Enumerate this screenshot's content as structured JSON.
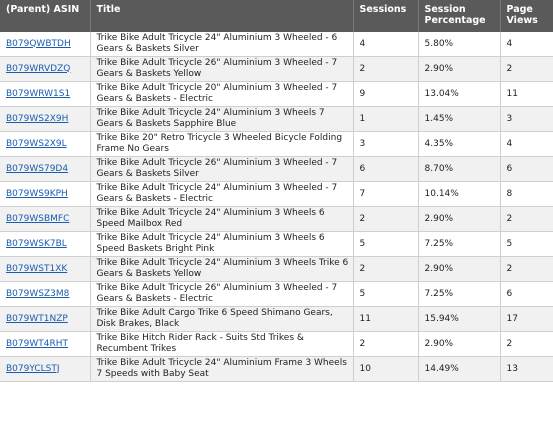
{
  "headers": {
    "asin": "(Parent) ASIN",
    "title": "Title",
    "sessions": "Sessions",
    "session_pct": "Session Percentage",
    "page_views": "Page Views"
  },
  "rows": [
    {
      "asin": "B079QWBTDH",
      "title": "Trike Bike Adult Tricycle 24\" Aluminium 3 Wheeled - 6 Gears & Baskets Silver",
      "sessions": "4",
      "pct": "5.80%",
      "views": "4"
    },
    {
      "asin": "B079WRVDZQ",
      "title": "Trike Bike Adult Tricycle 26\" Aluminium 3 Wheeled - 7 Gears & Baskets Yellow",
      "sessions": "2",
      "pct": "2.90%",
      "views": "2"
    },
    {
      "asin": "B079WRW1S1",
      "title": "Trike Bike Adult Tricycle 20\" Aluminium 3 Wheeled - 7 Gears & Baskets - Electric",
      "sessions": "9",
      "pct": "13.04%",
      "views": "11"
    },
    {
      "asin": "B079WS2X9H",
      "title": "Trike Bike Adult Tricycle 24\" Aluminium 3 Wheels 7 Gears & Baskets Sapphire Blue",
      "sessions": "1",
      "pct": "1.45%",
      "views": "3"
    },
    {
      "asin": "B079WS2X9L",
      "title": "Trike Bike 20\" Retro Tricycle 3 Wheeled Bicycle Folding Frame No Gears",
      "sessions": "3",
      "pct": "4.35%",
      "views": "4"
    },
    {
      "asin": "B079WS79D4",
      "title": "Trike Bike Adult Tricycle 26\" Aluminium 3 Wheeled - 7 Gears & Baskets Silver",
      "sessions": "6",
      "pct": "8.70%",
      "views": "6"
    },
    {
      "asin": "B079WS9KPH",
      "title": "Trike Bike Adult Tricycle 24\" Aluminium 3 Wheeled - 7 Gears & Baskets - Electric",
      "sessions": "7",
      "pct": "10.14%",
      "views": "8"
    },
    {
      "asin": "B079WSBMFC",
      "title": "Trike Bike Adult Tricycle 24\" Aluminium 3 Wheels 6 Speed Mailbox Red",
      "sessions": "2",
      "pct": "2.90%",
      "views": "2"
    },
    {
      "asin": "B079WSK7BL",
      "title": "Trike Bike Adult Tricycle 24\" Aluminium 3 Wheels 6 Speed Baskets Bright Pink",
      "sessions": "5",
      "pct": "7.25%",
      "views": "5"
    },
    {
      "asin": "B079WST1XK",
      "title": "Trike Bike Adult Tricycle 24\" Aluminium 3 Wheels Trike 6 Gears & Baskets Yellow",
      "sessions": "2",
      "pct": "2.90%",
      "views": "2"
    },
    {
      "asin": "B079WSZ3M8",
      "title": "Trike Bike Adult Tricycle 26\" Aluminium 3 Wheeled - 7 Gears & Baskets - Electric",
      "sessions": "5",
      "pct": "7.25%",
      "views": "6"
    },
    {
      "asin": "B079WT1NZP",
      "title": "Trike Bike Adult Cargo Trike 6 Speed Shimano Gears, Disk Brakes, Black",
      "sessions": "11",
      "pct": "15.94%",
      "views": "17"
    },
    {
      "asin": "B079WT4RHT",
      "title": "Trike Bike Hitch Rider Rack - Suits Std Trikes & Recumbent Trikes",
      "sessions": "2",
      "pct": "2.90%",
      "views": "2"
    },
    {
      "asin": "B079YCLSTJ",
      "title": "Trike Bike Adult Tricycle 24\" Aluminium Frame 3 Wheels 7 Speeds with Baby Seat",
      "sessions": "10",
      "pct": "14.49%",
      "views": "13"
    }
  ],
  "colors": {
    "header_bg": "#5a5a5a",
    "header_text": "#ffffff",
    "link": "#1a5cb0",
    "row_alt": "#f1f1f1"
  }
}
